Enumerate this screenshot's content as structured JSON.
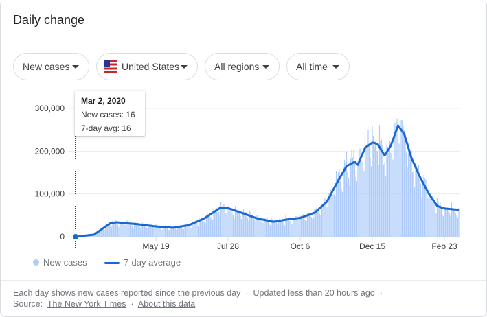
{
  "title": "Daily change",
  "filters": [
    {
      "label": "New cases"
    },
    {
      "label": "United States",
      "icon": "us-flag-icon"
    },
    {
      "label": "All regions"
    },
    {
      "label": "All time"
    }
  ],
  "tooltip": {
    "date": "Mar 2, 2020",
    "new_cases": "New cases: 16",
    "avg": "7-day avg: 16"
  },
  "colors": {
    "bars": "#aecbfa",
    "line": "#1967d2"
  },
  "chart_data": {
    "type": "bar+line",
    "x_start": "2020-03-02",
    "days": 373,
    "yticks": [
      "0",
      "100,000",
      "200,000",
      "300,000"
    ],
    "ylim": [
      0,
      300000
    ],
    "xticks": [
      {
        "label": "May 19",
        "day": 78
      },
      {
        "label": "Jul 28",
        "day": 148
      },
      {
        "label": "Oct 6",
        "day": 218
      },
      {
        "label": "Dec 15",
        "day": 288
      },
      {
        "label": "Feb 23",
        "day": 358
      }
    ],
    "legend": [
      "New cases",
      "7-day average"
    ],
    "avg_points": [
      [
        0,
        16
      ],
      [
        18,
        5000
      ],
      [
        34,
        32000
      ],
      [
        40,
        33700
      ],
      [
        61,
        29000
      ],
      [
        78,
        24000
      ],
      [
        95,
        21000
      ],
      [
        110,
        27000
      ],
      [
        125,
        43000
      ],
      [
        140,
        67000
      ],
      [
        148,
        67000
      ],
      [
        161,
        56000
      ],
      [
        176,
        43000
      ],
      [
        192,
        35000
      ],
      [
        207,
        41000
      ],
      [
        218,
        44000
      ],
      [
        232,
        56000
      ],
      [
        244,
        82000
      ],
      [
        253,
        123000
      ],
      [
        263,
        165000
      ],
      [
        271,
        175000
      ],
      [
        274,
        168000
      ],
      [
        281,
        208000
      ],
      [
        288,
        220000
      ],
      [
        293,
        217000
      ],
      [
        300,
        190000
      ],
      [
        306,
        213000
      ],
      [
        313,
        260000
      ],
      [
        319,
        240000
      ],
      [
        326,
        184000
      ],
      [
        335,
        136000
      ],
      [
        343,
        100000
      ],
      [
        351,
        72000
      ],
      [
        358,
        66000
      ],
      [
        372,
        63000
      ]
    ]
  },
  "footer": {
    "note": "Each day shows new cases reported since the previous day",
    "updated": "Updated less than 20 hours ago",
    "source_label": "Source:",
    "source": "The New York Times",
    "about": "About this data",
    "sep": "·"
  }
}
